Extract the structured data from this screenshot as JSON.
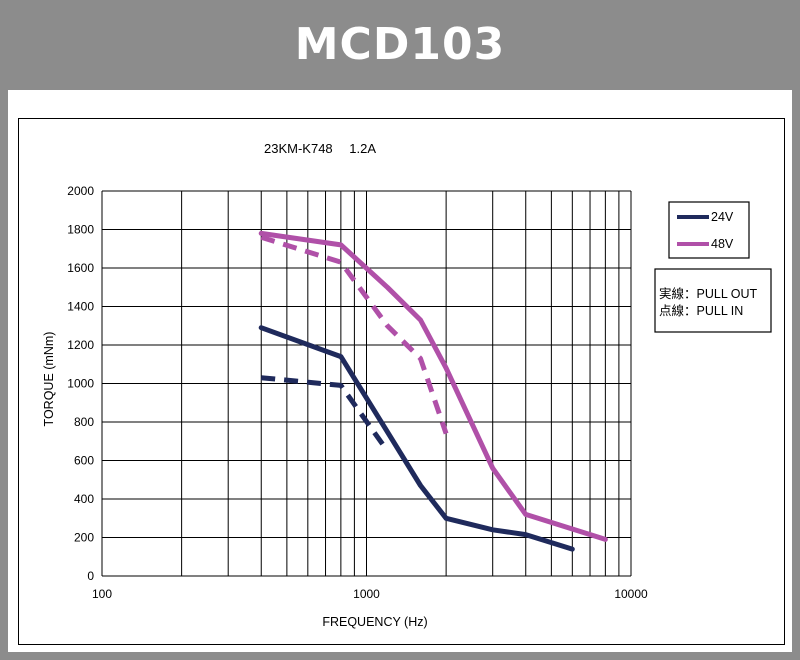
{
  "header": {
    "title": "MCD103"
  },
  "chart_data": {
    "type": "line",
    "subtitle": "23KM-K748　 1.2A",
    "xlabel": "FREQUENCY (Hz)",
    "ylabel": "TORQUE (mNm)",
    "xscale": "log",
    "xlim": [
      100,
      10000
    ],
    "ylim": [
      0,
      2000
    ],
    "x_ticks": [
      100,
      1000,
      10000
    ],
    "x_tick_labels": [
      "100",
      "1000",
      "10000"
    ],
    "y_ticks": [
      0,
      200,
      400,
      600,
      800,
      1000,
      1200,
      1400,
      1600,
      1800,
      2000
    ],
    "y_tick_labels": [
      "0",
      "200",
      "400",
      "600",
      "800",
      "1000",
      "1200",
      "1400",
      "1600",
      "1800",
      "2000"
    ],
    "grid": true,
    "legend": {
      "position": "right",
      "entries": [
        {
          "label": "24V",
          "color": "#1f2a5c"
        },
        {
          "label": "48V",
          "color": "#b050a8"
        }
      ]
    },
    "note": {
      "lines": [
        "実線：PULL OUT",
        "点線：PULL IN"
      ]
    },
    "series": [
      {
        "name": "24V PULL OUT",
        "color": "#1f2a5c",
        "style": "solid",
        "x": [
          400,
          800,
          1600,
          2000,
          3000,
          4000,
          6000
        ],
        "y": [
          1290,
          1140,
          470,
          300,
          240,
          215,
          140
        ]
      },
      {
        "name": "24V PULL IN",
        "color": "#1f2a5c",
        "style": "dashed",
        "x": [
          400,
          800,
          1200
        ],
        "y": [
          1030,
          990,
          650
        ]
      },
      {
        "name": "48V PULL OUT",
        "color": "#b050a8",
        "style": "solid",
        "x": [
          400,
          800,
          1200,
          1600,
          2000,
          3000,
          4000,
          8000
        ],
        "y": [
          1780,
          1720,
          1500,
          1330,
          1080,
          560,
          320,
          190
        ]
      },
      {
        "name": "48V PULL IN",
        "color": "#b050a8",
        "style": "dashed",
        "x": [
          400,
          800,
          1200,
          1600,
          2000
        ],
        "y": [
          1760,
          1630,
          1300,
          1130,
          740
        ]
      }
    ]
  }
}
